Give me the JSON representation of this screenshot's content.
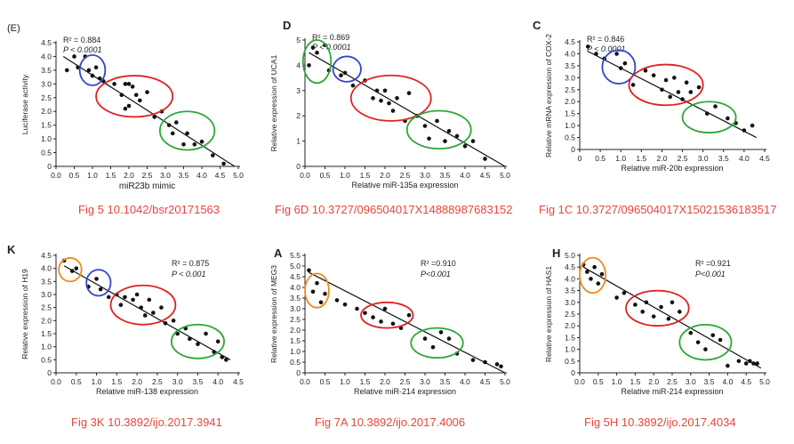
{
  "colors": {
    "caption": "#e8453c",
    "red": "#e02020",
    "green": "#2aa838",
    "blue": "#3344cc",
    "orange": "#f08a1c",
    "ink": "#222222"
  },
  "chart_data": [
    {
      "type": "scatter",
      "panel_label": "(E)",
      "ylabel": "Luciferase activity",
      "xlabel": "miR23b mimic",
      "r2_text": "R² = 0.884",
      "p_text": "P < 0.0001",
      "xlim": [
        0,
        5
      ],
      "ylim": [
        0,
        4.5
      ],
      "xticks": [
        "0.0",
        "0.5",
        "1.0",
        "1.5",
        "2.0",
        "2.5",
        "3.0",
        "3.5",
        "4.0",
        "4.5",
        "5.0"
      ],
      "yticks": [
        "0",
        "0.5",
        "1.0",
        "1.5",
        "2.0",
        "2.5",
        "3.0",
        "3.5",
        "4.0",
        "4.5"
      ],
      "fit": [
        [
          0.2,
          4.0
        ],
        [
          4.9,
          0.0
        ]
      ],
      "x": [
        0.3,
        0.5,
        0.6,
        0.8,
        0.9,
        1.0,
        1.1,
        1.2,
        1.3,
        1.6,
        1.8,
        1.9,
        2.0,
        2.1,
        2.2,
        2.3,
        1.9,
        2.0,
        2.5,
        2.7,
        2.9,
        3.1,
        3.2,
        3.3,
        3.5,
        3.6,
        3.8,
        4.0,
        4.3,
        4.6
      ],
      "y": [
        3.5,
        4.0,
        3.6,
        4.0,
        3.5,
        3.3,
        3.6,
        3.2,
        3.1,
        3.0,
        2.6,
        3.0,
        3.0,
        2.9,
        2.6,
        2.4,
        2.1,
        2.2,
        2.7,
        1.8,
        2.0,
        1.5,
        1.2,
        1.6,
        0.8,
        1.2,
        0.8,
        0.9,
        0.4,
        0.1
      ],
      "ellipses": [
        {
          "color": "blue",
          "cx": 1.0,
          "cy": 3.5,
          "rx": 0.35,
          "ry": 0.55
        },
        {
          "color": "red",
          "cx": 2.15,
          "cy": 2.55,
          "rx": 1.05,
          "ry": 0.75
        },
        {
          "color": "green",
          "cx": 3.6,
          "cy": 1.3,
          "rx": 0.75,
          "ry": 0.7
        }
      ],
      "caption": "Fig 5 10.1042/bsr20171563"
    },
    {
      "type": "scatter",
      "panel_label": "D",
      "ylabel": "Relative expression of UCA1",
      "xlabel": "Relative miR-135a expression",
      "r2_text": "R² = 0.869",
      "p_text": "P < 0.0001",
      "xlim": [
        0,
        5
      ],
      "ylim": [
        0,
        5
      ],
      "xticks": [
        "0.0",
        "0.5",
        "1.0",
        "1.5",
        "2.0",
        "2.5",
        "3.0",
        "3.5",
        "4.0",
        "4.5",
        "5.0"
      ],
      "yticks": [
        "0",
        "1",
        "2",
        "3",
        "4",
        "5"
      ],
      "fit": [
        [
          0.1,
          4.5
        ],
        [
          5.0,
          0.0
        ]
      ],
      "x": [
        0.1,
        0.2,
        0.3,
        0.5,
        0.6,
        0.9,
        1.0,
        1.2,
        1.5,
        1.7,
        1.8,
        1.9,
        2.0,
        2.1,
        2.2,
        2.3,
        2.5,
        2.6,
        2.8,
        3.0,
        3.1,
        3.3,
        3.5,
        3.6,
        3.8,
        4.0,
        4.2,
        4.5
      ],
      "y": [
        4.0,
        4.7,
        4.5,
        4.8,
        3.8,
        3.6,
        3.7,
        3.2,
        3.4,
        2.7,
        3.0,
        2.6,
        3.0,
        2.5,
        2.2,
        2.7,
        1.8,
        2.9,
        2.0,
        1.6,
        1.1,
        1.8,
        1.0,
        1.4,
        1.2,
        0.8,
        1.0,
        0.3
      ],
      "ellipses": [
        {
          "color": "green",
          "cx": 0.3,
          "cy": 4.15,
          "rx": 0.35,
          "ry": 0.85
        },
        {
          "color": "blue",
          "cx": 1.05,
          "cy": 3.85,
          "rx": 0.35,
          "ry": 0.5
        },
        {
          "color": "red",
          "cx": 2.15,
          "cy": 2.7,
          "rx": 1.0,
          "ry": 0.9
        },
        {
          "color": "green",
          "cx": 3.35,
          "cy": 1.45,
          "rx": 0.8,
          "ry": 0.75
        }
      ],
      "caption": "Fig 6D 10.3727/096504017X14888987683152"
    },
    {
      "type": "scatter",
      "panel_label": "C",
      "ylabel": "Relative mRNA expression of COX-2",
      "xlabel": "Relative miR-20b expression",
      "r2_text": "R² = 0.846",
      "p_text": "P < 0.0001",
      "xlim": [
        0,
        4.5
      ],
      "ylim": [
        0,
        4.5
      ],
      "xticks": [
        "0",
        "0.5",
        "1.0",
        "1.5",
        "2.0",
        "2.5",
        "3.0",
        "3.5",
        "4.0",
        "4.5"
      ],
      "yticks": [
        "0",
        "0.5",
        "1.0",
        "1.5",
        "2.0",
        "2.5",
        "3.0",
        "3.5",
        "4.0",
        "4.5"
      ],
      "fit": [
        [
          0.2,
          4.1
        ],
        [
          4.3,
          0.5
        ]
      ],
      "x": [
        0.2,
        0.4,
        0.6,
        0.9,
        1.0,
        1.1,
        1.3,
        1.6,
        1.8,
        2.0,
        2.1,
        2.2,
        2.3,
        2.4,
        2.5,
        2.6,
        2.7,
        2.9,
        3.1,
        3.3,
        3.6,
        3.8,
        4.0,
        4.2
      ],
      "y": [
        4.3,
        4.0,
        3.8,
        4.0,
        3.4,
        3.6,
        2.7,
        3.3,
        3.1,
        2.5,
        2.9,
        2.2,
        3.0,
        2.4,
        2.1,
        2.8,
        2.4,
        2.6,
        1.5,
        1.8,
        1.3,
        1.1,
        0.8,
        1.0
      ],
      "ellipses": [
        {
          "color": "blue",
          "cx": 0.95,
          "cy": 3.45,
          "rx": 0.4,
          "ry": 0.7
        },
        {
          "color": "red",
          "cx": 2.1,
          "cy": 2.7,
          "rx": 0.9,
          "ry": 0.85
        },
        {
          "color": "green",
          "cx": 3.15,
          "cy": 1.35,
          "rx": 0.65,
          "ry": 0.65
        }
      ],
      "caption": "Fig 1C 10.3727/096504017X15021536183517"
    },
    {
      "type": "scatter",
      "panel_label": "K",
      "ylabel": "Relative expression of H19",
      "xlabel": "Relative miR-138 expression",
      "r2_text": "R² = 0.875",
      "p_text": "P < 0.001",
      "xlim": [
        0,
        4.5
      ],
      "ylim": [
        0,
        4.5
      ],
      "xticks": [
        "0.0",
        "0.5",
        "1.0",
        "1.5",
        "2.0",
        "2.5",
        "3.0",
        "3.5",
        "4.0",
        "4.5"
      ],
      "yticks": [
        "0",
        "0.5",
        "1.0",
        "1.5",
        "2.0",
        "2.5",
        "3.0",
        "3.5",
        "4.0",
        "4.5"
      ],
      "fit": [
        [
          0.2,
          4.1
        ],
        [
          4.3,
          0.5
        ]
      ],
      "x": [
        0.2,
        0.4,
        0.5,
        0.8,
        1.0,
        1.1,
        1.3,
        1.5,
        1.6,
        1.7,
        1.9,
        2.0,
        2.1,
        2.2,
        2.3,
        2.4,
        2.6,
        2.7,
        2.9,
        3.0,
        3.2,
        3.3,
        3.5,
        3.7,
        3.9,
        4.0,
        4.1,
        4.2
      ],
      "y": [
        4.3,
        3.9,
        4.0,
        3.3,
        3.6,
        3.2,
        2.9,
        3.0,
        2.6,
        2.9,
        2.8,
        3.0,
        2.5,
        2.2,
        2.8,
        2.3,
        2.5,
        1.9,
        2.0,
        1.5,
        1.7,
        1.3,
        1.1,
        1.5,
        0.8,
        1.2,
        0.6,
        0.5
      ],
      "ellipses": [
        {
          "color": "orange",
          "cx": 0.35,
          "cy": 3.95,
          "rx": 0.28,
          "ry": 0.45
        },
        {
          "color": "blue",
          "cx": 1.05,
          "cy": 3.45,
          "rx": 0.3,
          "ry": 0.5
        },
        {
          "color": "red",
          "cx": 2.15,
          "cy": 2.6,
          "rx": 0.8,
          "ry": 0.75
        },
        {
          "color": "green",
          "cx": 3.5,
          "cy": 1.2,
          "rx": 0.65,
          "ry": 0.65
        }
      ],
      "caption": "Fig 3K 10.3892/ijo.2017.3941"
    },
    {
      "type": "scatter",
      "panel_label": "A",
      "ylabel": "Relative expression of MEG3",
      "xlabel": "Relative miR-214 expression",
      "r2_text": "R² =0.910",
      "p_text": "P<0.001",
      "xlim": [
        0,
        5
      ],
      "ylim": [
        0,
        5.5
      ],
      "xticks": [
        "0.0",
        "0.5",
        "1.0",
        "1.5",
        "2.0",
        "2.5",
        "3.0",
        "3.5",
        "4.0",
        "4.5",
        "5.0"
      ],
      "yticks": [
        "0",
        "0.5",
        "1.0",
        "1.5",
        "2.0",
        "2.5",
        "3.0",
        "3.5",
        "4.0",
        "4.5",
        "5.0",
        "5.5"
      ],
      "fit": [
        [
          0.1,
          4.7
        ],
        [
          5.0,
          0.0
        ]
      ],
      "x": [
        0.1,
        0.2,
        0.3,
        0.4,
        0.5,
        0.8,
        1.0,
        1.3,
        1.5,
        1.7,
        1.9,
        2.0,
        2.2,
        2.4,
        2.6,
        3.0,
        3.2,
        3.4,
        3.6,
        3.8,
        4.2,
        4.5,
        4.8,
        4.9
      ],
      "y": [
        4.8,
        3.8,
        4.2,
        3.3,
        3.7,
        3.4,
        3.2,
        3.0,
        2.8,
        2.6,
        2.4,
        3.0,
        2.3,
        2.1,
        2.7,
        1.6,
        1.2,
        1.9,
        1.6,
        0.9,
        0.6,
        0.5,
        0.4,
        0.3
      ],
      "ellipses": [
        {
          "color": "orange",
          "cx": 0.3,
          "cy": 3.85,
          "rx": 0.3,
          "ry": 0.8
        },
        {
          "color": "red",
          "cx": 2.05,
          "cy": 2.7,
          "rx": 0.65,
          "ry": 0.6
        },
        {
          "color": "green",
          "cx": 3.3,
          "cy": 1.4,
          "rx": 0.65,
          "ry": 0.7
        }
      ],
      "caption": "Fig 7A 10.3892/ijo.2017.4006"
    },
    {
      "type": "scatter",
      "panel_label": "H",
      "ylabel": "Relative expression of HAS1",
      "xlabel": "Relative miR-214 expression",
      "r2_text": "R² =0.921",
      "p_text": "P<0.001",
      "xlim": [
        0,
        5
      ],
      "ylim": [
        0,
        5
      ],
      "xticks": [
        "0.0",
        "0.5",
        "1.0",
        "1.5",
        "2.0",
        "2.5",
        "3.0",
        "3.5",
        "4.0",
        "4.5",
        "5.0"
      ],
      "yticks": [
        "0",
        "0.5",
        "1.0",
        "1.5",
        "2.0",
        "2.5",
        "3.0",
        "3.5",
        "4.0",
        "4.5",
        "5.0"
      ],
      "fit": [
        [
          0.1,
          4.5
        ],
        [
          4.9,
          0.2
        ]
      ],
      "x": [
        0.1,
        0.2,
        0.3,
        0.4,
        0.5,
        0.6,
        1.0,
        1.2,
        1.5,
        1.7,
        1.8,
        2.0,
        2.2,
        2.4,
        2.5,
        2.7,
        3.0,
        3.2,
        3.4,
        3.6,
        3.8,
        4.0,
        4.3,
        4.5,
        4.6,
        4.7,
        4.8
      ],
      "y": [
        4.6,
        4.3,
        4.0,
        4.5,
        3.8,
        4.2,
        3.2,
        3.4,
        2.9,
        2.6,
        3.0,
        2.4,
        2.8,
        2.3,
        3.0,
        2.6,
        1.7,
        1.3,
        1.0,
        1.6,
        1.4,
        0.3,
        0.5,
        0.4,
        0.5,
        0.4,
        0.4
      ],
      "ellipses": [
        {
          "color": "orange",
          "cx": 0.35,
          "cy": 4.15,
          "rx": 0.35,
          "ry": 0.75
        },
        {
          "color": "red",
          "cx": 2.1,
          "cy": 2.75,
          "rx": 0.85,
          "ry": 0.75
        },
        {
          "color": "green",
          "cx": 3.4,
          "cy": 1.3,
          "rx": 0.7,
          "ry": 0.75
        }
      ],
      "caption": "Fig 5H 10.3892/ijo.2017.4034"
    }
  ]
}
